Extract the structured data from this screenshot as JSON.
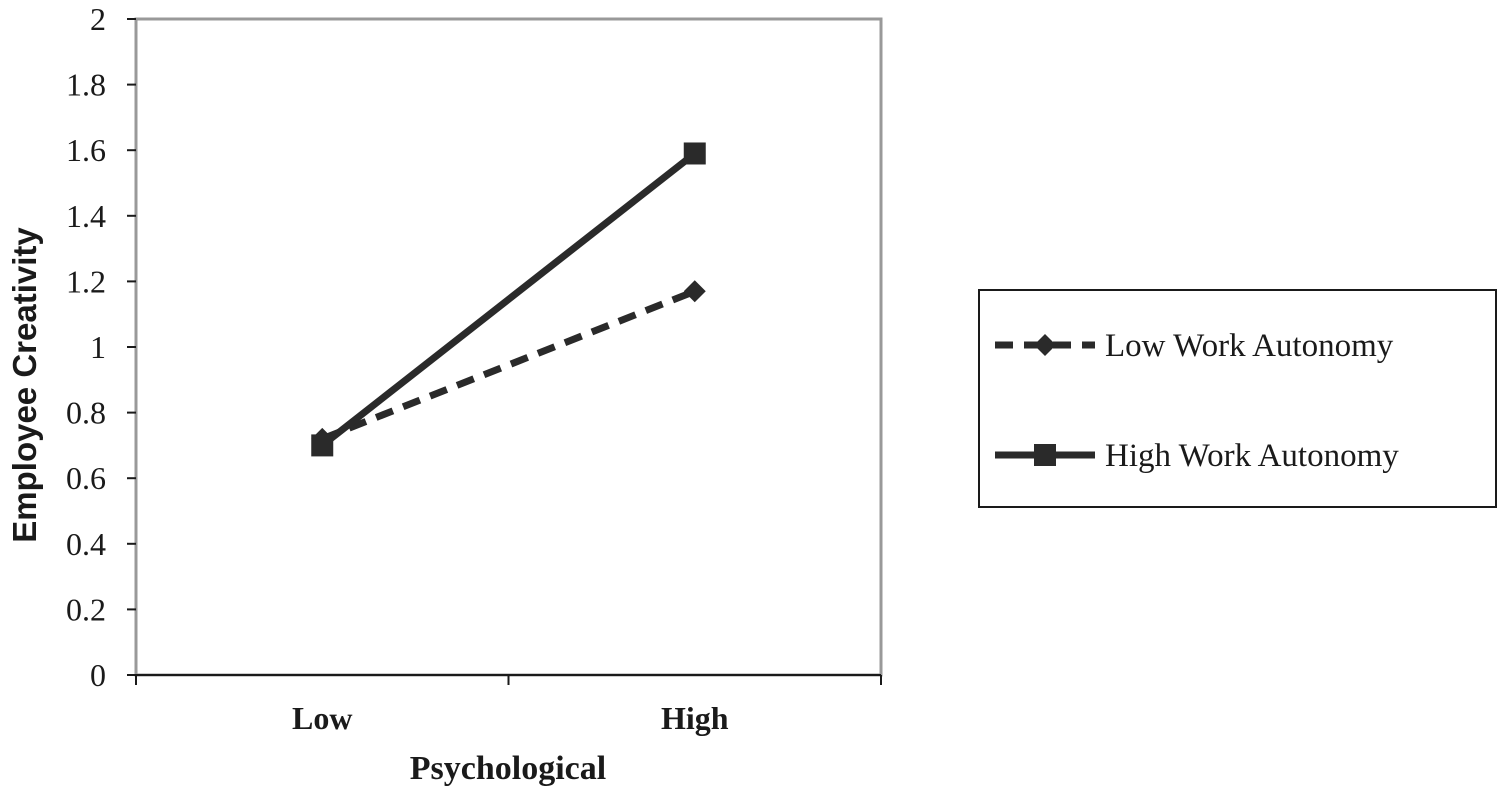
{
  "chart_data": {
    "type": "line",
    "categories": [
      "Low",
      "High"
    ],
    "series": [
      {
        "name": "Low Work Autonomy",
        "values": [
          0.72,
          1.17
        ],
        "style": "dashed",
        "marker": "diamond",
        "color": "#2a2a2a"
      },
      {
        "name": "High Work Autonomy",
        "values": [
          0.7,
          1.59
        ],
        "style": "solid",
        "marker": "square",
        "color": "#2a2a2a"
      }
    ],
    "xlabel": "Psychological",
    "ylabel": "Employee Creativity",
    "ylim": [
      0,
      2
    ],
    "yticks": [
      "0",
      "0.2",
      "0.4",
      "0.6",
      "0.8",
      "1",
      "1.2",
      "1.4",
      "1.6",
      "1.8",
      "2"
    ],
    "grid": false,
    "legend_position": "right",
    "plot_border_color": "#999999"
  }
}
